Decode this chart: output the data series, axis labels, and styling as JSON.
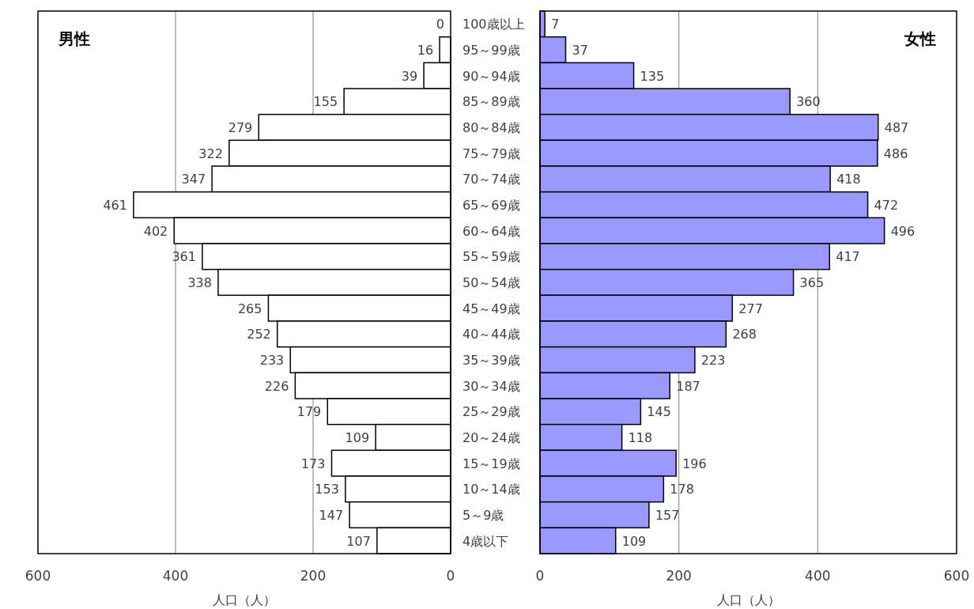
{
  "chart_data": [
    {
      "type": "bar",
      "orientation": "horizontal",
      "title": "男性",
      "xlabel": "人口（人）",
      "categories": [
        "100歳以上",
        "95～99歳",
        "90～94歳",
        "85～89歳",
        "80～84歳",
        "75～79歳",
        "70～74歳",
        "65～69歳",
        "60～64歳",
        "55～59歳",
        "50～54歳",
        "45～49歳",
        "40～44歳",
        "35～39歳",
        "30～34歳",
        "25～29歳",
        "20～24歳",
        "15～19歳",
        "10～14歳",
        "5～9歳",
        "4歳以下"
      ],
      "values": [
        0,
        16,
        39,
        155,
        279,
        322,
        347,
        461,
        402,
        361,
        338,
        265,
        252,
        233,
        226,
        179,
        109,
        173,
        153,
        147,
        107
      ],
      "color": "#ffffff",
      "xlim": [
        600,
        0
      ],
      "xticks": [
        600,
        400,
        200,
        0
      ],
      "grid": "x",
      "data_labels": true
    },
    {
      "type": "bar",
      "orientation": "horizontal",
      "title": "女性",
      "xlabel": "人口（人）",
      "categories": [
        null,
        null,
        null,
        null,
        null,
        null,
        null,
        null,
        null,
        null,
        null,
        null,
        null,
        null,
        null,
        null,
        null,
        null,
        null,
        null,
        null
      ],
      "values": [
        7,
        37,
        135,
        360,
        487,
        486,
        418,
        472,
        496,
        417,
        365,
        277,
        268,
        223,
        187,
        145,
        118,
        196,
        178,
        157,
        109
      ],
      "color": "#9999ff",
      "xlim": [
        0,
        600
      ],
      "xticks": [
        0,
        200,
        400,
        600
      ],
      "grid": "x",
      "data_labels": true,
      "tick_labels": "x"
    }
  ]
}
